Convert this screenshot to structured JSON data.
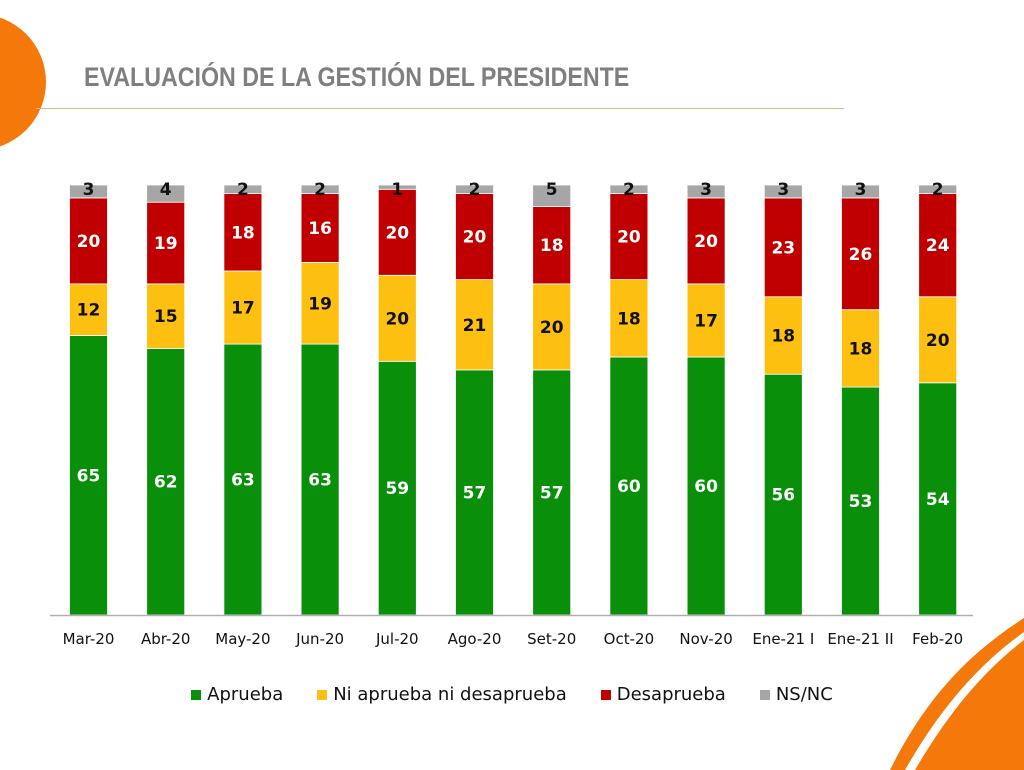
{
  "page": {
    "title": "EVALUACIÓN DE LA GESTIÓN DEL PRESIDENTE",
    "accent_color": "#f5780a"
  },
  "chart_data": {
    "type": "bar",
    "stacked": true,
    "title": "EVALUACIÓN DE LA GESTIÓN DEL PRESIDENTE",
    "xlabel": "",
    "ylabel": "",
    "ylim": [
      0,
      100
    ],
    "grid": false,
    "legend_position": "bottom",
    "categories": [
      "Mar-20",
      "Abr-20",
      "May-20",
      "Jun-20",
      "Jul-20",
      "Ago-20",
      "Set-20",
      "Oct-20",
      "Nov-20",
      "Ene-21 I",
      "Ene-21 II",
      "Feb-20"
    ],
    "series": [
      {
        "name": "Aprueba",
        "color": "#0a8f0a",
        "label_color": "#ffffff",
        "values": [
          65,
          62,
          63,
          63,
          59,
          57,
          57,
          60,
          60,
          56,
          53,
          54
        ]
      },
      {
        "name": "Ni aprueba ni desaprueba",
        "color": "#fdc010",
        "label_color": "#111111",
        "values": [
          12,
          15,
          17,
          19,
          20,
          21,
          20,
          18,
          17,
          18,
          18,
          20
        ]
      },
      {
        "name": "Desaprueba",
        "color": "#c00000",
        "label_color": "#ffffff",
        "values": [
          20,
          19,
          18,
          16,
          20,
          20,
          18,
          20,
          20,
          23,
          26,
          24
        ]
      },
      {
        "name": "NS/NC",
        "color": "#a6a6a6",
        "label_color": "#111111",
        "values": [
          3,
          4,
          2,
          2,
          1,
          2,
          5,
          2,
          3,
          3,
          3,
          2
        ]
      }
    ]
  }
}
